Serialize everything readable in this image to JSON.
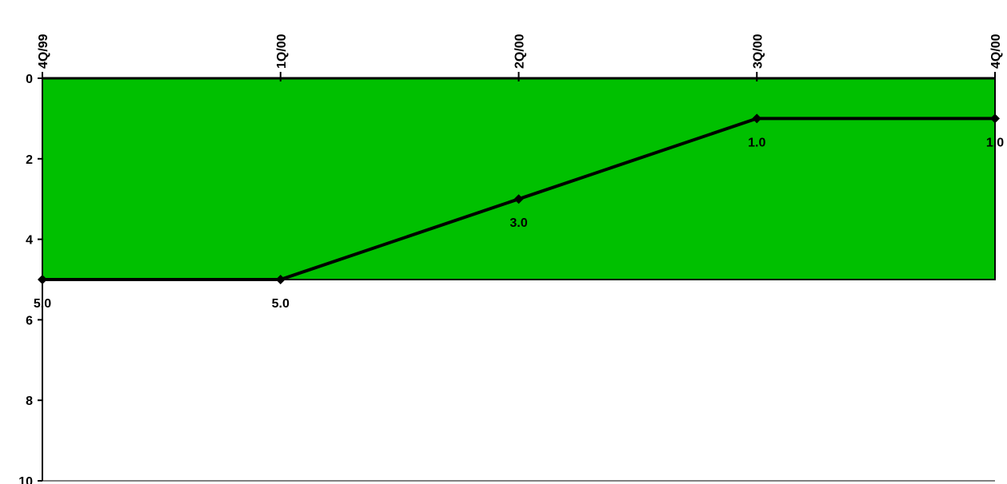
{
  "chart_data": {
    "type": "line",
    "title": "",
    "xlabel": "",
    "ylabel": "",
    "categories": [
      "4Q/99",
      "1Q/00",
      "2Q/00",
      "3Q/00",
      "4Q/00"
    ],
    "series": [
      {
        "values": [
          5.0,
          5.0,
          3.0,
          1.0,
          1.0
        ],
        "data_labels": [
          "5.0",
          "5.0",
          "3.0",
          "1.0",
          "1.0"
        ]
      }
    ],
    "band": {
      "from": 0,
      "to": 5,
      "color": "#00c000"
    },
    "x_axis_position": "top",
    "y_axis": {
      "inverted": true,
      "ylim": [
        0,
        10
      ],
      "ticks": [
        "0",
        "2",
        "4",
        "6",
        "8",
        "10"
      ]
    },
    "grid": false,
    "legend": "none",
    "colors": {
      "line": "#000000",
      "band": "#00c000",
      "background": "#ffffff"
    }
  }
}
